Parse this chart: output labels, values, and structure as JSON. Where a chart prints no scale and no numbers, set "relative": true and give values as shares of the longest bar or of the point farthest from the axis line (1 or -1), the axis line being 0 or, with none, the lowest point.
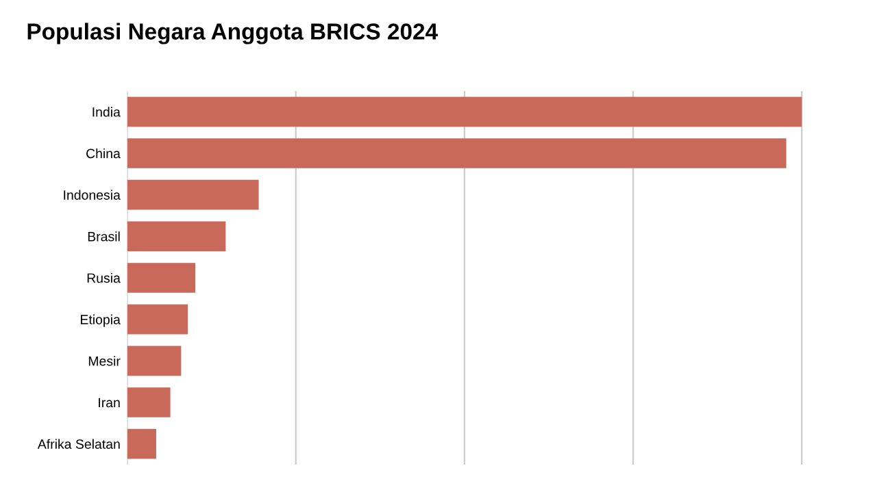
{
  "chart_data": {
    "type": "bar",
    "orientation": "horizontal",
    "relative": true,
    "title": "Populasi Negara Anggota BRICS 2024",
    "categories": [
      "India",
      "China",
      "Indonesia",
      "Brasil",
      "Rusia",
      "Etiopia",
      "Mesir",
      "Iran",
      "Afrika Selatan"
    ],
    "values": [
      1,
      0.977,
      0.195,
      0.146,
      0.101,
      0.09,
      0.08,
      0.064,
      0.043
    ],
    "color": "#c8695a",
    "grid": "x"
  }
}
